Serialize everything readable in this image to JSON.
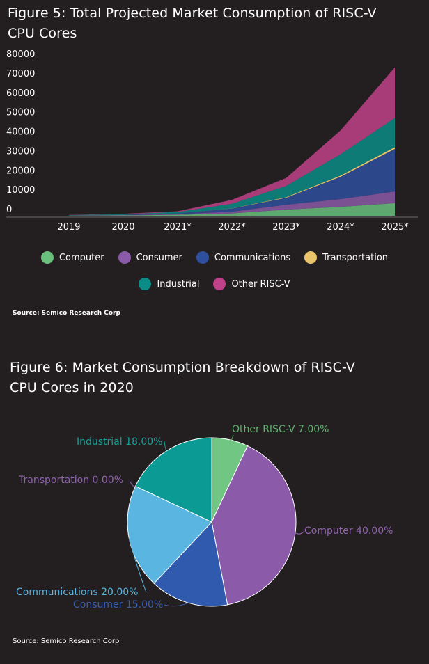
{
  "chart_data": [
    {
      "type": "area",
      "stacked": true,
      "title": "Figure 5: Total Projected Market Consumption of RISC-V CPU Cores",
      "categories": [
        "2019",
        "2020",
        "2021*",
        "2022*",
        "2023*",
        "2024*",
        "2025*"
      ],
      "ylim": [
        0,
        80000
      ],
      "yticks": [
        0,
        10000,
        20000,
        30000,
        40000,
        50000,
        60000,
        70000,
        80000
      ],
      "grid": false,
      "legend_position": "bottom",
      "series": [
        {
          "name": "Computer",
          "color": "#6ac17e",
          "values": [
            100,
            200,
            500,
            1200,
            3200,
            4600,
            6500
          ]
        },
        {
          "name": "Consumer",
          "color": "#8b5aa8",
          "values": [
            50,
            150,
            300,
            900,
            2500,
            4000,
            6000
          ]
        },
        {
          "name": "Communications",
          "color": "#2e4f9e",
          "values": [
            100,
            200,
            400,
            1600,
            3600,
            11500,
            22000
          ]
        },
        {
          "name": "Transportation",
          "color": "#e9c46a",
          "values": [
            0,
            0,
            20,
            100,
            300,
            600,
            900
          ]
        },
        {
          "name": "Industrial",
          "color": "#0c8c86",
          "values": [
            100,
            300,
            700,
            2400,
            5800,
            11000,
            15000
          ]
        },
        {
          "name": "Other RISC-V",
          "color": "#c0428a",
          "values": [
            100,
            200,
            400,
            2000,
            4100,
            12300,
            26100
          ]
        }
      ]
    },
    {
      "type": "pie",
      "title": "Figure 6: Market Consumption Breakdown of RISC-V CPU Cores in 2020",
      "slices": [
        {
          "label": "Other RISC-V 7.00%",
          "value": 7,
          "color": "#72c683",
          "label_color": "#5fb36f"
        },
        {
          "label": "Computer 40.00%",
          "value": 40,
          "color": "#8b5aa8",
          "label_color": "#9062b0"
        },
        {
          "label": "Consumer 15.00%",
          "value": 15,
          "color": "#2f5aad",
          "label_color": "#3a5fb0"
        },
        {
          "label": "Communications 20.00%",
          "value": 20,
          "color": "#5ab5e0",
          "label_color": "#5ab5e0"
        },
        {
          "label": "Transportation 0.00%",
          "value": 0,
          "color": "#8b5aa8",
          "label_color": "#9062b0"
        },
        {
          "label": "Industrial 18.00%",
          "value": 18,
          "color": "#0c9a94",
          "label_color": "#1a9d97"
        }
      ]
    }
  ],
  "sources": {
    "fig5": "Source: Semico Research Corp",
    "fig6": "Source: Semico Research Corp"
  }
}
